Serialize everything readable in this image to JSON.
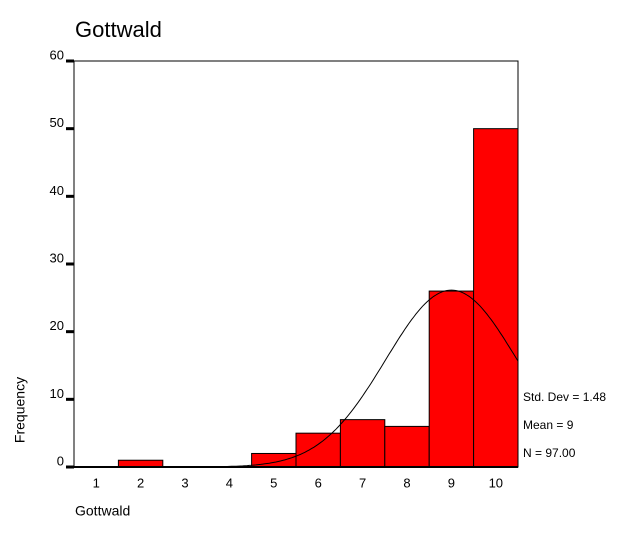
{
  "chart_data": {
    "type": "bar",
    "title": "Gottwald",
    "x_label": "Gottwald",
    "y_label": "Frequency",
    "categories": [
      1,
      2,
      3,
      4,
      5,
      6,
      7,
      8,
      9,
      10
    ],
    "values": [
      0,
      1,
      0,
      0,
      2,
      5,
      7,
      6,
      26,
      50
    ],
    "color": "#ff0000",
    "ylim": [
      0,
      60
    ],
    "yticks": [
      0,
      10,
      20,
      30,
      40,
      50,
      60
    ],
    "stats": [
      {
        "label": "Std. Dev = 1.48",
        "value": 1.48
      },
      {
        "label": "Mean = 9",
        "value": 9
      },
      {
        "label": "N = 97.00",
        "value": 97
      }
    ],
    "normal_curve": true
  }
}
